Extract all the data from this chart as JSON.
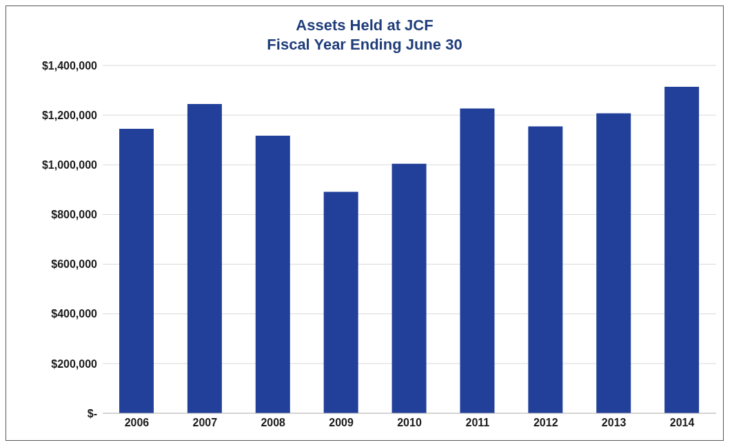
{
  "chart_data": {
    "type": "bar",
    "title": "Assets Held at JCF",
    "subtitle": "Fiscal Year Ending June 30",
    "categories": [
      "2006",
      "2007",
      "2008",
      "2009",
      "2010",
      "2011",
      "2012",
      "2013",
      "2014"
    ],
    "values": [
      1145000,
      1245000,
      1117000,
      891000,
      1004000,
      1227000,
      1155000,
      1207000,
      1314000
    ],
    "color": "#22409a",
    "ylim": [
      0,
      1400000
    ],
    "yticks": [
      {
        "value": 0,
        "label": "$-"
      },
      {
        "value": 200000,
        "label": "$200,000"
      },
      {
        "value": 400000,
        "label": "$400,000"
      },
      {
        "value": 600000,
        "label": "$600,000"
      },
      {
        "value": 800000,
        "label": "$800,000"
      },
      {
        "value": 1000000,
        "label": "$1,000,000"
      },
      {
        "value": 1200000,
        "label": "$1,200,000"
      },
      {
        "value": 1400000,
        "label": "$1,400,000"
      }
    ],
    "grid": "y"
  }
}
